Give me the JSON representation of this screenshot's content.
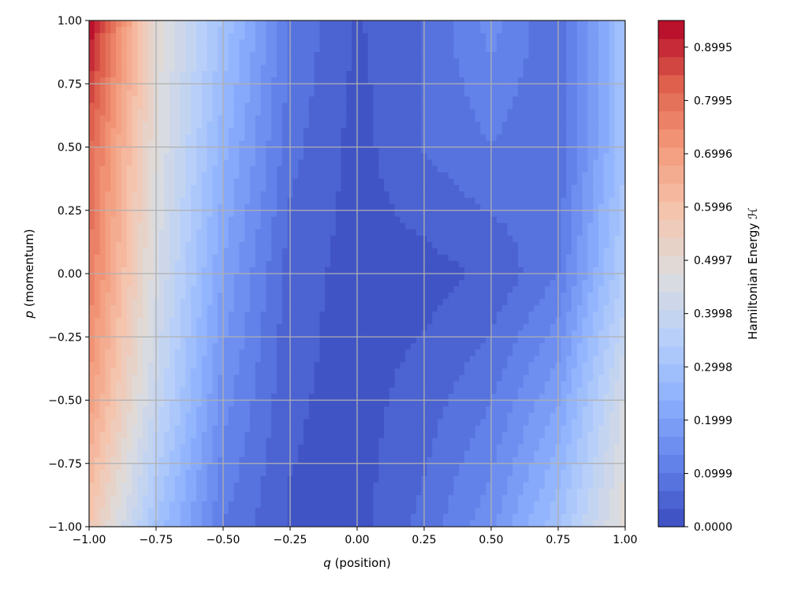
{
  "chart_data": {
    "type": "contourf",
    "title": "",
    "xlabel_var": "q",
    "xlabel_rest": " (position)",
    "ylabel_var": "p",
    "ylabel_rest": " (momentum)",
    "xlim": [
      -1.0,
      1.0
    ],
    "ylim": [
      -1.0,
      1.0
    ],
    "x_ticks": [
      -1.0,
      -0.75,
      -0.5,
      -0.25,
      0.0,
      0.25,
      0.5,
      0.75,
      1.0
    ],
    "x_tick_labels": [
      "−1.00",
      "−0.75",
      "−0.50",
      "−0.25",
      "0.00",
      "0.25",
      "0.50",
      "0.75",
      "1.00"
    ],
    "y_ticks": [
      -1.0,
      -0.75,
      -0.5,
      -0.25,
      0.0,
      0.25,
      0.5,
      0.75,
      1.0
    ],
    "y_tick_labels": [
      "−1.00",
      "−0.75",
      "−0.50",
      "−0.25",
      "0.00",
      "0.25",
      "0.50",
      "0.75",
      "1.00"
    ],
    "grid": true,
    "colormap": "coolwarm",
    "colorbar": {
      "label": "Hamiltonian Energy ℋ",
      "range": [
        0.0,
        0.9495
      ],
      "levels": 28,
      "ticks": [
        0.0,
        0.0999,
        0.1999,
        0.2998,
        0.3998,
        0.4997,
        0.5996,
        0.6996,
        0.7995,
        0.8995
      ],
      "tick_labels": [
        "0.0000",
        "0.0999",
        "0.1999",
        "0.2998",
        "0.3998",
        "0.4997",
        "0.5996",
        "0.6996",
        "0.7995",
        "0.8995"
      ]
    },
    "field_samples": {
      "q": [
        -1.0,
        -0.75,
        -0.5,
        -0.25,
        0.0,
        0.25,
        0.5,
        0.75,
        1.0
      ],
      "p": [
        1.0,
        0.5,
        0.0,
        -0.5,
        -1.0
      ],
      "H": [
        [
          0.95,
          0.5,
          0.3,
          0.1,
          0.03,
          0.07,
          0.15,
          0.07,
          0.3
        ],
        [
          0.82,
          0.48,
          0.25,
          0.08,
          0.02,
          0.07,
          0.1,
          0.07,
          0.3
        ],
        [
          0.78,
          0.45,
          0.2,
          0.05,
          0.02,
          0.02,
          0.04,
          0.1,
          0.35
        ],
        [
          0.7,
          0.4,
          0.15,
          0.04,
          0.02,
          0.05,
          0.1,
          0.2,
          0.45
        ],
        [
          0.58,
          0.3,
          0.1,
          0.03,
          0.02,
          0.08,
          0.16,
          0.3,
          0.5
        ]
      ]
    }
  }
}
